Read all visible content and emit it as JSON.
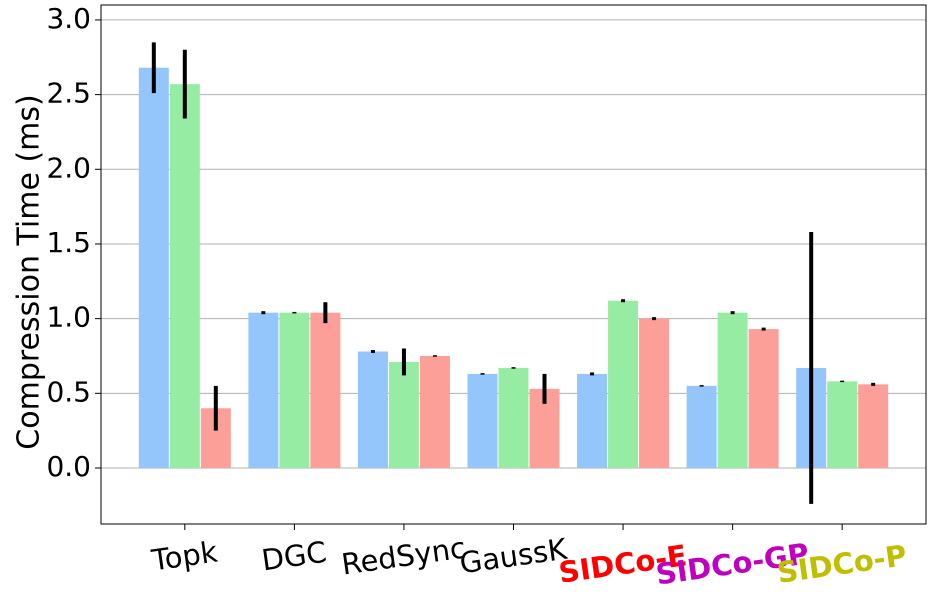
{
  "chart_data": {
    "type": "bar",
    "y_label": "Compression Time (ms)",
    "categories": [
      "Topk",
      "DGC",
      "RedSync",
      "GaussK",
      "SIDCo-E",
      "SIDCo-GP",
      "SIDCo-P"
    ],
    "category_colors": [
      "#000000",
      "#000000",
      "#000000",
      "#000000",
      "#ff0000",
      "#c000c0",
      "#bfbf00"
    ],
    "category_font_weights": [
      "normal",
      "normal",
      "normal",
      "normal",
      "bold",
      "bold",
      "bold"
    ],
    "series": [
      {
        "color": "#94c6fc",
        "values": [
          2.68,
          1.04,
          0.78,
          0.63,
          0.63,
          0.55,
          0.67
        ],
        "errors": [
          0.17,
          0.01,
          0.01,
          0.005,
          0.01,
          0.005,
          0.91
        ]
      },
      {
        "color": "#97eca3",
        "values": [
          2.57,
          1.04,
          0.71,
          0.67,
          1.12,
          1.04,
          0.58
        ],
        "errors": [
          0.23,
          0.005,
          0.09,
          0.005,
          0.01,
          0.01,
          0.005
        ]
      },
      {
        "color": "#fd9f99",
        "values": [
          0.4,
          1.04,
          0.75,
          0.53,
          1.0,
          0.93,
          0.56
        ],
        "errors": [
          0.15,
          0.07,
          0.005,
          0.1,
          0.01,
          0.01,
          0.01
        ]
      }
    ],
    "ylim": [
      -0.375,
      3.1
    ],
    "yticks": [
      {
        "value": 0,
        "label": "0.0"
      },
      {
        "value": 0.5,
        "label": "0.5"
      },
      {
        "value": 1,
        "label": "1.0"
      },
      {
        "value": 1.5,
        "label": "1.5"
      },
      {
        "value": 2,
        "label": "2.0"
      },
      {
        "value": 2.5,
        "label": "2.5"
      },
      {
        "value": 3,
        "label": "3.0"
      }
    ],
    "grid": true
  }
}
